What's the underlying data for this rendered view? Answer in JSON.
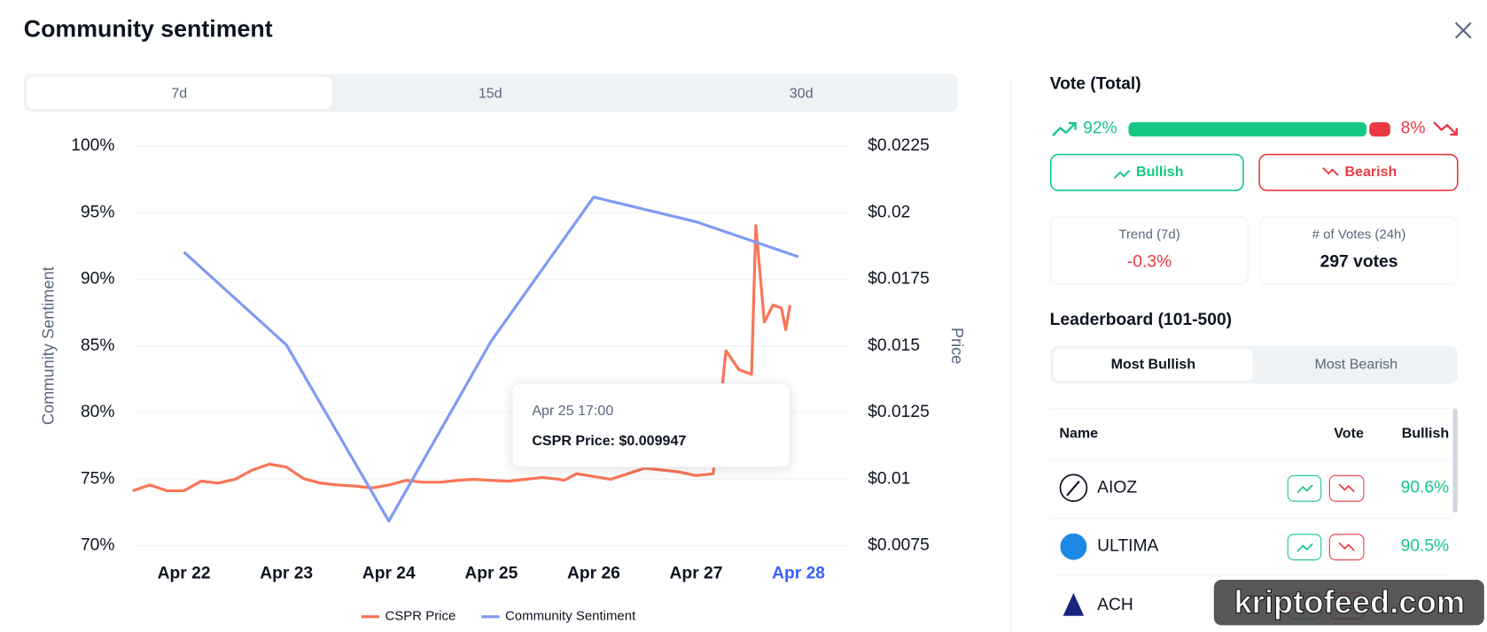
{
  "title": "Community sentiment",
  "tabs": [
    "7d",
    "15d",
    "30d"
  ],
  "chart_data": {
    "type": "line",
    "categories": [
      "Apr 22",
      "Apr 23",
      "Apr 24",
      "Apr 25",
      "Apr 26",
      "Apr 27",
      "Apr 28"
    ],
    "ylabel": "Community Sentiment",
    "y2label": "Price",
    "ylim": [
      70,
      100
    ],
    "yticks": [
      {
        "value": 70,
        "label": "70%"
      },
      {
        "value": 75,
        "label": "75%"
      },
      {
        "value": 80,
        "label": "80%"
      },
      {
        "value": 85,
        "label": "85%"
      },
      {
        "value": 90,
        "label": "90%"
      },
      {
        "value": 95,
        "label": "95%"
      },
      {
        "value": 100,
        "label": "100%"
      }
    ],
    "y2lim": [
      0.0075,
      0.0225
    ],
    "y2ticks": [
      {
        "value": 0.0075,
        "label": "$0.0075"
      },
      {
        "value": 0.01,
        "label": "$0.01"
      },
      {
        "value": 0.0125,
        "label": "$0.0125"
      },
      {
        "value": 0.015,
        "label": "$0.015"
      },
      {
        "value": 0.0175,
        "label": "$0.0175"
      },
      {
        "value": 0.02,
        "label": "$0.02"
      },
      {
        "value": 0.0225,
        "label": "$0.0225"
      }
    ],
    "grid": true,
    "legend": "bottom",
    "series": [
      {
        "name": "CSPR Price",
        "color": "#fa7558",
        "axis": "y2",
        "x": [
          "Apr 21 12:00",
          "Apr 21 16:00",
          "Apr 21 20:00",
          "Apr 22 00:00",
          "Apr 22 04:00",
          "Apr 22 08:00",
          "Apr 22 12:00",
          "Apr 22 16:00",
          "Apr 22 20:00",
          "Apr 23 00:00",
          "Apr 23 04:00",
          "Apr 23 08:00",
          "Apr 23 12:00",
          "Apr 23 16:00",
          "Apr 23 20:00",
          "Apr 24 00:00",
          "Apr 24 04:00",
          "Apr 24 08:00",
          "Apr 24 12:00",
          "Apr 24 16:00",
          "Apr 24 20:00",
          "Apr 25 00:00",
          "Apr 25 04:00",
          "Apr 25 08:00",
          "Apr 25 12:00",
          "Apr 25 16:00",
          "Apr 25 17:00",
          "Apr 25 20:00",
          "Apr 26 00:00",
          "Apr 26 04:00",
          "Apr 26 08:00",
          "Apr 26 12:00",
          "Apr 26 16:00",
          "Apr 26 20:00",
          "Apr 27 00:00",
          "Apr 27 04:00",
          "Apr 27 07:00",
          "Apr 27 10:00",
          "Apr 27 13:00",
          "Apr 27 14:00",
          "Apr 27 16:00",
          "Apr 27 18:00",
          "Apr 27 20:00",
          "Apr 27 21:00",
          "Apr 27 22:00"
        ],
        "values": [
          0.00956,
          0.00978,
          0.00956,
          0.00956,
          0.00992,
          0.00985,
          0.00999,
          0.01034,
          0.01056,
          0.01045,
          0.01002,
          0.00985,
          0.00978,
          0.00974,
          0.00967,
          0.00978,
          0.00995,
          0.00988,
          0.00988,
          0.00995,
          0.00999,
          0.00995,
          0.00992,
          0.00999,
          0.01006,
          0.00999,
          0.009947,
          0.0102,
          0.0101,
          0.00999,
          0.0102,
          0.01041,
          0.01034,
          0.01027,
          0.01013,
          0.0102,
          0.01482,
          0.01411,
          0.01393,
          0.01951,
          0.01589,
          0.01653,
          0.01642,
          0.0156,
          0.01653
        ]
      },
      {
        "name": "Community Sentiment",
        "color": "#809bf3",
        "values": [
          92.04,
          85.07,
          71.85,
          85.36,
          96.16,
          94.31,
          91.68
        ]
      }
    ],
    "tooltip": {
      "title": "Apr 25 17:00",
      "text": "CSPR Price: $0.009947"
    }
  },
  "vote": {
    "title": "Vote (Total)",
    "values": [
      92,
      8
    ],
    "value_labels": [
      "92%",
      "8%"
    ],
    "colors": [
      "#16c784",
      "#ea3943"
    ],
    "buttons": [
      "Bullish",
      "Bearish"
    ]
  },
  "stats": [
    {
      "label": "Trend (7d)",
      "value": "-0.3%"
    },
    {
      "label": "# of Votes (24h)",
      "value": "297 votes"
    }
  ],
  "leaderboard": {
    "title": "Leaderboard (101-500)",
    "tabs": [
      "Most Bullish",
      "Most Bearish"
    ],
    "columns": [
      "Name",
      "Vote",
      "Bullish"
    ],
    "rows": [
      {
        "name": "AIOZ",
        "bullish": "90.6%"
      },
      {
        "name": "ULTIMA",
        "bullish": "90.5%"
      },
      {
        "name": "ACH"
      }
    ]
  },
  "watermark": "kriptofeed.com"
}
